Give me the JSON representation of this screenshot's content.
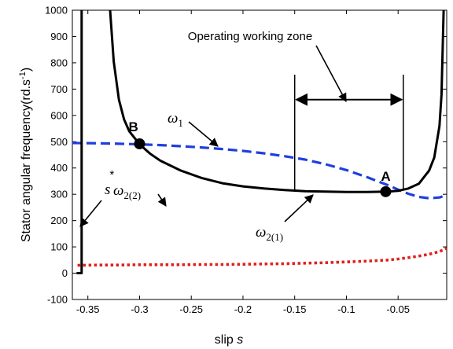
{
  "chart_data": {
    "type": "line",
    "title": "",
    "xlabel_text": "slip ",
    "xlabel_var": "s",
    "ylabel_text": "Stator angular frequency(rd.s",
    "ylabel_sup": "-1",
    "ylabel_close": ")",
    "xlim": [
      -0.365,
      -0.003
    ],
    "ylim": [
      -100,
      1000
    ],
    "xticks": [
      -0.35,
      -0.3,
      -0.25,
      -0.2,
      -0.15,
      -0.1,
      -0.05
    ],
    "xtick_labels": [
      "-0.35",
      "-0.3",
      "-0.25",
      "-0.2",
      "-0.15",
      "-0.1",
      "-0.05"
    ],
    "yticks": [
      -100,
      0,
      100,
      200,
      300,
      400,
      500,
      600,
      700,
      800,
      900,
      1000
    ],
    "ytick_labels": [
      "-100",
      "0",
      "100",
      "200",
      "300",
      "400",
      "500",
      "600",
      "700",
      "800",
      "900",
      "1000"
    ],
    "grid": false,
    "series": [
      {
        "key": "omega1",
        "color": "#1f3fdc",
        "style": "dashed",
        "x": [
          -0.365,
          -0.34,
          -0.32,
          -0.3,
          -0.28,
          -0.26,
          -0.24,
          -0.22,
          -0.2,
          -0.18,
          -0.16,
          -0.14,
          -0.12,
          -0.1,
          -0.08,
          -0.06,
          -0.05,
          -0.04,
          -0.03,
          -0.02,
          -0.01,
          -0.003
        ],
        "y": [
          495,
          494,
          492,
          490,
          487,
          483,
          478,
          472,
          465,
          456,
          445,
          432,
          414,
          392,
          365,
          335,
          318,
          302,
          290,
          285,
          288,
          298
        ]
      },
      {
        "key": "omega21",
        "color": "#000000",
        "style": "solid",
        "x": [
          -0.3285,
          -0.325,
          -0.32,
          -0.315,
          -0.31,
          -0.3,
          -0.29,
          -0.28,
          -0.26,
          -0.24,
          -0.22,
          -0.2,
          -0.18,
          -0.16,
          -0.14,
          -0.12,
          -0.1,
          -0.08,
          -0.06,
          -0.05,
          -0.04,
          -0.03,
          -0.02,
          -0.015,
          -0.01,
          -0.008,
          -0.006
        ],
        "y": [
          1000,
          805,
          660,
          585,
          540,
          490,
          455,
          428,
          390,
          362,
          342,
          330,
          322,
          316,
          312,
          310,
          309,
          309,
          310,
          313,
          322,
          340,
          390,
          440,
          560,
          680,
          1000
        ]
      },
      {
        "key": "omega22",
        "color": "#e0201c",
        "style": "dotted",
        "x": [
          -0.36,
          -0.34,
          -0.32,
          -0.3,
          -0.28,
          -0.26,
          -0.24,
          -0.22,
          -0.2,
          -0.18,
          -0.16,
          -0.14,
          -0.12,
          -0.1,
          -0.08,
          -0.06,
          -0.05,
          -0.04,
          -0.03,
          -0.02,
          -0.01,
          -0.003
        ],
        "y": [
          30,
          31,
          31,
          32,
          32,
          32,
          33,
          33,
          34,
          35,
          36,
          38,
          40,
          43,
          46,
          50,
          54,
          59,
          65,
          72,
          82,
          95
        ]
      },
      {
        "key": "sstar_line",
        "color": "#000000",
        "style": "solid",
        "x": [
          -0.361,
          -0.356,
          -0.356,
          -0.355
        ],
        "y": [
          0,
          0,
          1000,
          1000
        ]
      }
    ],
    "points": [
      {
        "label": "A",
        "x": -0.062,
        "y": 310
      },
      {
        "label": "B",
        "x": -0.3,
        "y": 492
      }
    ],
    "zone": {
      "label": "Operating working zone",
      "x_start": -0.15,
      "x_end": -0.045,
      "y_top": 755,
      "y_bottom": 315,
      "arrow_y": 660
    },
    "labels": {
      "omega1_base": "ω",
      "omega1_sub": "1",
      "omega21_base": "ω",
      "omega21_sub": "2(1)",
      "omega22_base": "ω",
      "omega22_sub": "2(2)",
      "sstar_base": "s",
      "sstar_sup": "*"
    }
  }
}
